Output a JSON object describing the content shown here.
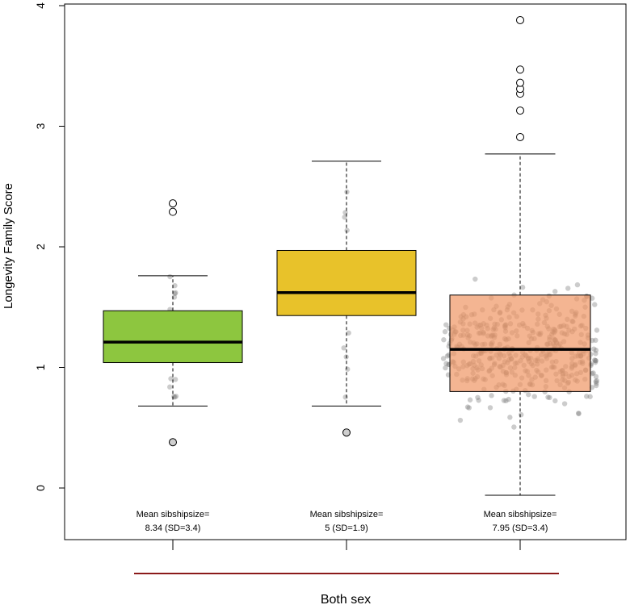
{
  "chart_data": {
    "type": "box",
    "ylabel": "Longevity Family Score",
    "xlabel": "Both sex",
    "ylim": [
      0,
      4
    ],
    "yticks": [
      0,
      1,
      2,
      3,
      4
    ],
    "ytick_labels": [
      "0",
      "1",
      "2",
      "3",
      "4"
    ],
    "grid": false,
    "legend": "none",
    "groups": [
      {
        "color": "#8dc63f",
        "q1": 1.04,
        "median": 1.21,
        "q3": 1.47,
        "whisker_low": 0.68,
        "whisker_high": 1.76,
        "outliers": [
          0.38,
          2.29,
          2.36
        ],
        "annotation": [
          "Mean sibshipsize=",
          "8.34 (SD=3.4)"
        ]
      },
      {
        "color": "#e8c22a",
        "q1": 1.43,
        "median": 1.62,
        "q3": 1.97,
        "whisker_low": 0.68,
        "whisker_high": 2.71,
        "outliers": [
          0.46
        ],
        "annotation": [
          "Mean sibshipsize=",
          "5 (SD=1.9)"
        ]
      },
      {
        "color": "#f0b08a",
        "q1": 0.8,
        "median": 1.15,
        "q3": 1.6,
        "whisker_low": -0.06,
        "whisker_high": 2.77,
        "outliers": [
          2.91,
          3.13,
          3.27,
          3.31,
          3.36,
          3.47,
          3.88
        ],
        "annotation": [
          "Mean sibshipsize=",
          "7.95 (SD=3.4)"
        ]
      }
    ]
  }
}
